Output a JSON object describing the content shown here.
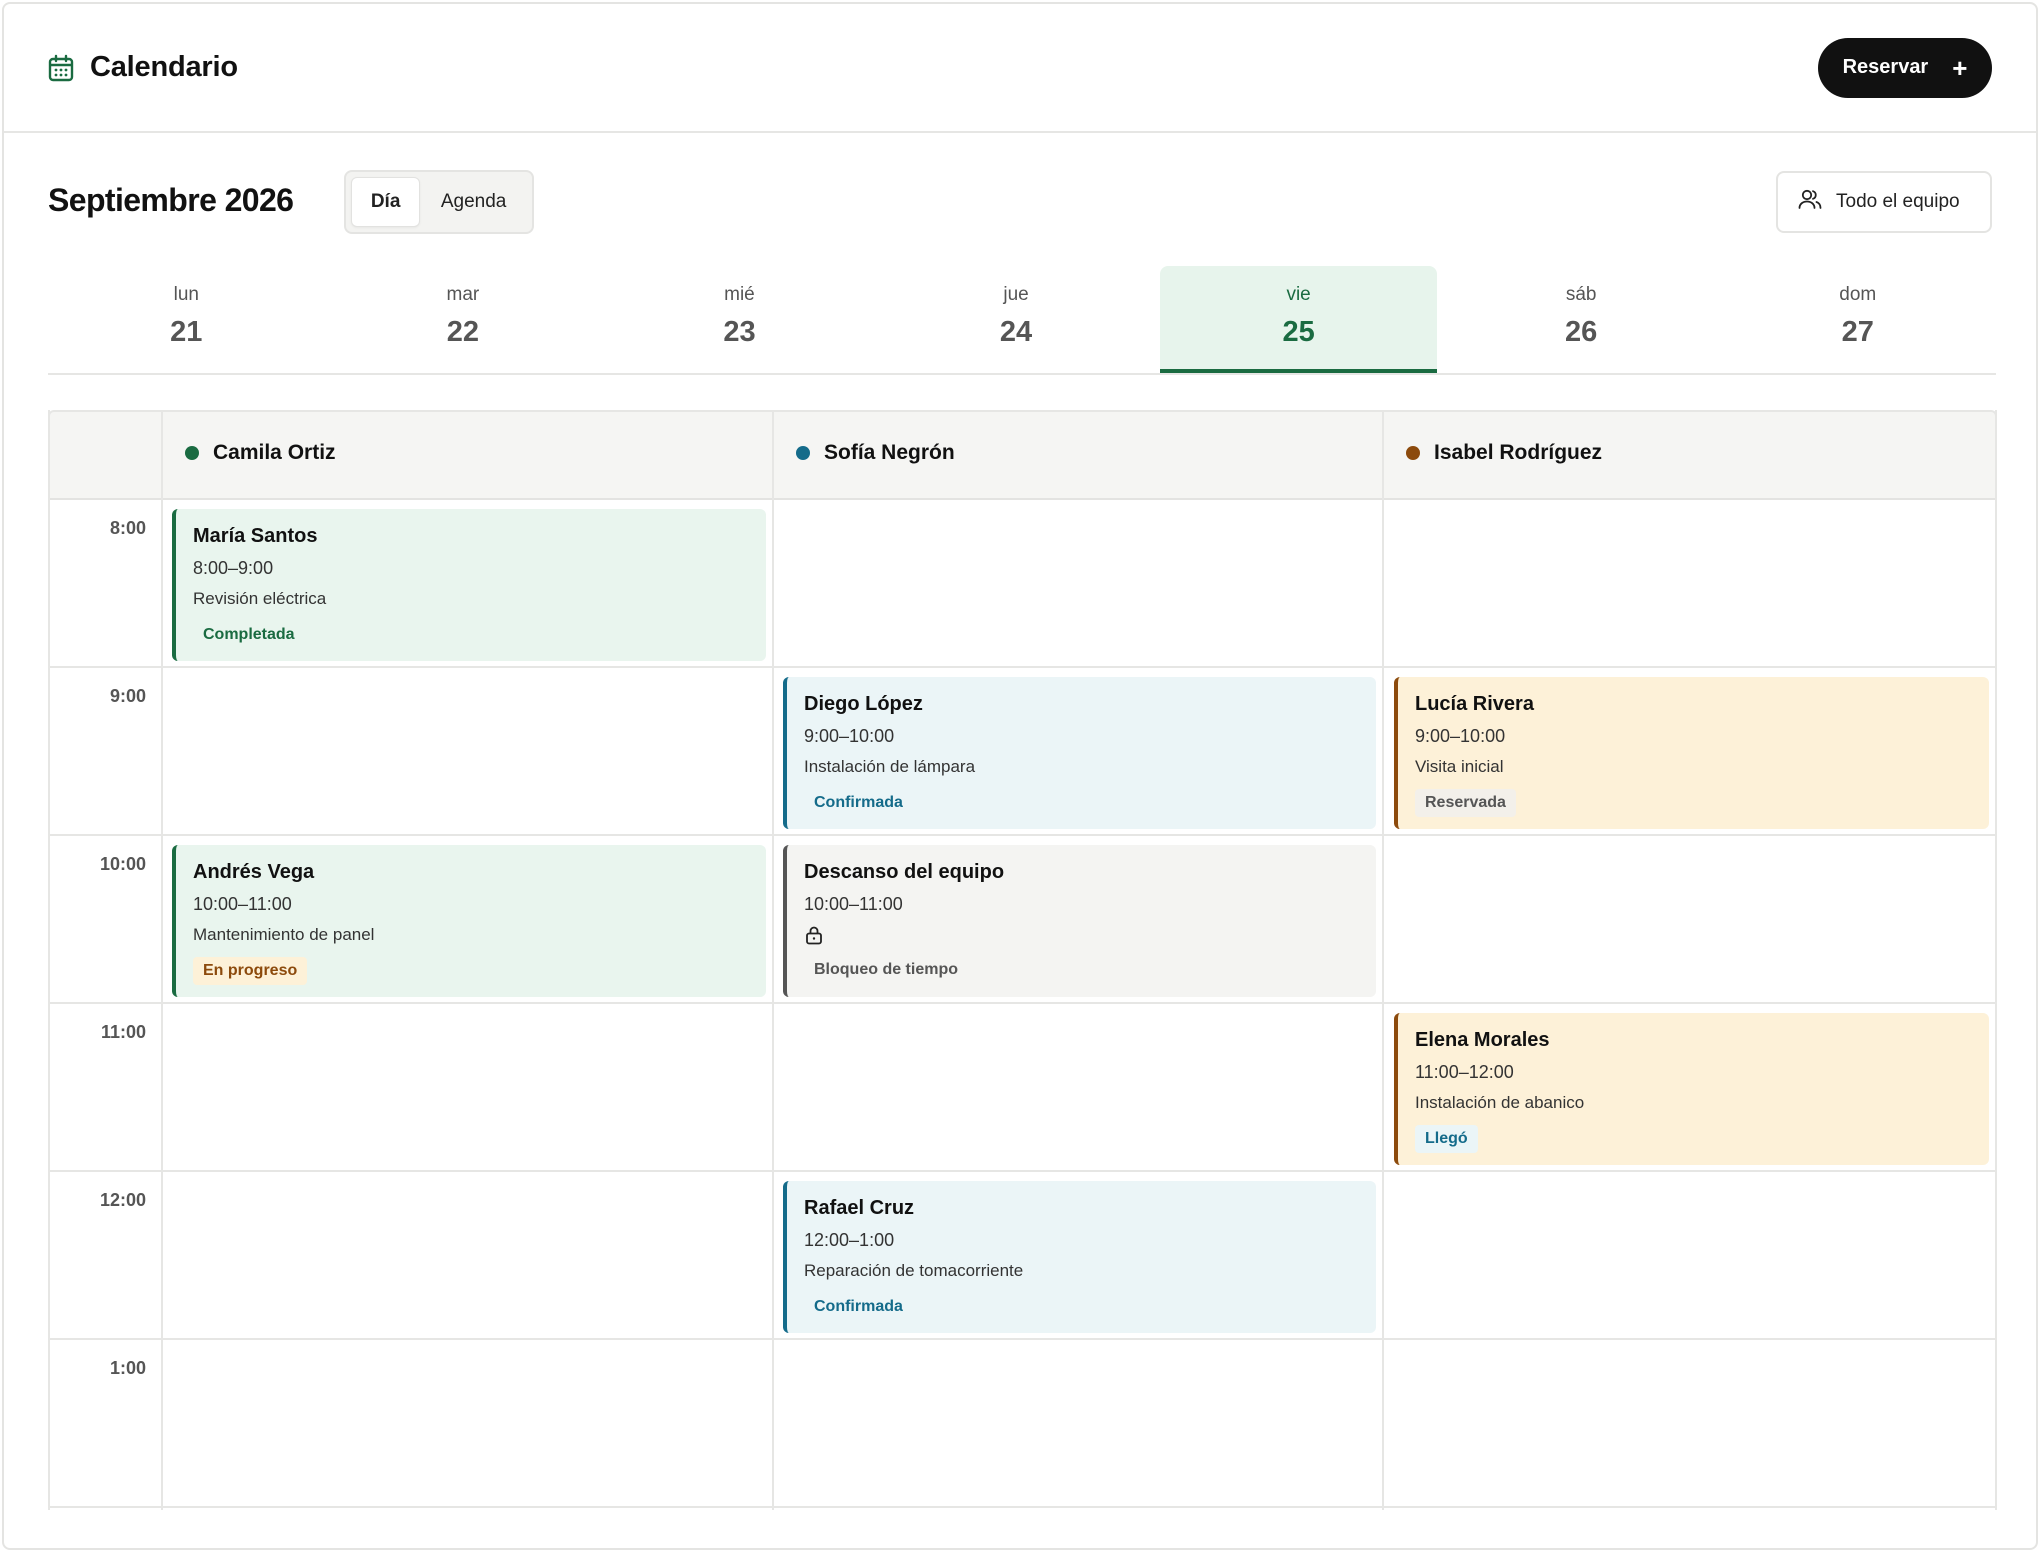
{
  "header": {
    "title": "Calendario",
    "icon": "calendar-icon",
    "reserve_label": "Reservar",
    "reserve_icon": "+"
  },
  "toolbar": {
    "month": "Septiembre 2026",
    "views": [
      {
        "label": "Día",
        "active": true
      },
      {
        "label": "Agenda",
        "active": false
      }
    ],
    "team_filter": "Todo el equipo"
  },
  "days": [
    {
      "name": "lun",
      "num": "21"
    },
    {
      "name": "mar",
      "num": "22"
    },
    {
      "name": "mié",
      "num": "23"
    },
    {
      "name": "jue",
      "num": "24"
    },
    {
      "name": "vie",
      "num": "25",
      "selected": true
    },
    {
      "name": "sáb",
      "num": "26"
    },
    {
      "name": "dom",
      "num": "27"
    }
  ],
  "staff": [
    {
      "name": "Camila Ortiz",
      "color": "#1a6b41"
    },
    {
      "name": "Sofía Negrón",
      "color": "#146b8a"
    },
    {
      "name": "Isabel Rodríguez",
      "color": "#8c4a0c"
    }
  ],
  "times": [
    "8:00",
    "9:00",
    "10:00",
    "11:00",
    "12:00",
    "1:00"
  ],
  "events": {
    "e1": {
      "title": "María Santos",
      "time": "8:00–9:00",
      "desc": "Revisión eléctrica",
      "badge": "Completada"
    },
    "e2": {
      "title": "Diego López",
      "time": "9:00–10:00",
      "desc": "Instalación de lámpara",
      "badge": "Confirmada"
    },
    "e3": {
      "title": "Lucía Rivera",
      "time": "9:00–10:00",
      "desc": "Visita inicial",
      "badge": "Reservada"
    },
    "e4": {
      "title": "Andrés Vega",
      "time": "10:00–11:00",
      "desc": "Mantenimiento de panel",
      "badge": "En progreso"
    },
    "e5": {
      "title": "Descanso del equipo",
      "time": "10:00–11:00",
      "badge": "Bloqueo de tiempo"
    },
    "e6": {
      "title": "Elena Morales",
      "time": "11:00–12:00",
      "desc": "Instalación de abanico",
      "badge": "Llegó"
    },
    "e7": {
      "title": "Rafael Cruz",
      "time": "12:00–1:00",
      "desc": "Reparación de tomacorriente",
      "badge": "Confirmada"
    }
  },
  "colors": {
    "accent": "#1a6b41",
    "blue": "#146b8a",
    "amber": "#8c4a0c",
    "badge_completed_text": "#1a6b41",
    "badge_confirmed_text": "#146b8a",
    "badge_reserved_text": "#555555",
    "badge_progress_bg": "#fdf1d8",
    "badge_progress_text": "#8c4a0c",
    "badge_arrived_bg": "#ebf5f7"
  }
}
